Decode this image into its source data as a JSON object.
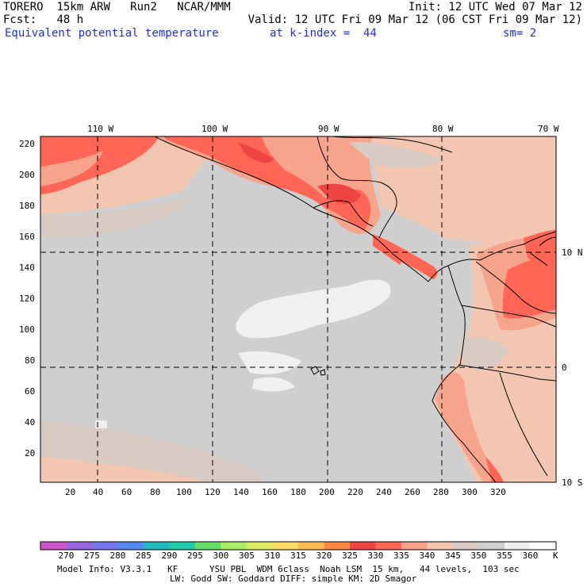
{
  "header": {
    "model": "TORERO",
    "resolution": "15km ARW",
    "run": "Run2",
    "org": "NCAR/MMM",
    "init": "Init: 12 UTC Wed 07 Mar 12",
    "fcst_label": "Fcst:",
    "fcst_value": "48 h",
    "valid": "Valid: 12 UTC Fri 09 Mar 12 (06 CST Fri 09 Mar 12)",
    "field": "Equivalent potential temperature",
    "level": "at k-index =  44",
    "smooth": "sm= 2"
  },
  "map": {
    "top_lon_labels": [
      "110 W",
      "100 W",
      "90 W",
      "80 W",
      "70 W"
    ],
    "right_lat_labels": [
      "10 N",
      "0",
      "10 S"
    ],
    "y_ticks": [
      "220",
      "200",
      "180",
      "160",
      "140",
      "120",
      "100",
      "80",
      "60",
      "40",
      "20"
    ],
    "x_ticks": [
      "20",
      "40",
      "60",
      "80",
      "100",
      "120",
      "140",
      "160",
      "180",
      "200",
      "220",
      "240",
      "260",
      "280",
      "300",
      "320"
    ]
  },
  "colorbar": {
    "labels": [
      "270",
      "275",
      "280",
      "285",
      "290",
      "295",
      "300",
      "305",
      "310",
      "315",
      "320",
      "325",
      "330",
      "335",
      "340",
      "345",
      "350",
      "355",
      "360"
    ],
    "unit": "K",
    "colors": [
      "#cc55cc",
      "#9966dd",
      "#7777ee",
      "#5588ee",
      "#22bbbb",
      "#22ccaa",
      "#66dd66",
      "#aaee66",
      "#ddee66",
      "#ffdd66",
      "#ffbb55",
      "#ff8844",
      "#ee4444",
      "#ff6655",
      "#f7a48c",
      "#f2c6b0",
      "#d8cbc4",
      "#cfcfcf",
      "#f0f0f0",
      "#ffffff"
    ]
  },
  "footer": {
    "line1": "Model Info: V3.3.1   KF      YSU PBL  WDM 6class  Noah LSM  15 km,   44 levels,  103 sec",
    "line2": "LW: Godd SW: Goddard DIFF: simple KM: 2D Smagor"
  }
}
